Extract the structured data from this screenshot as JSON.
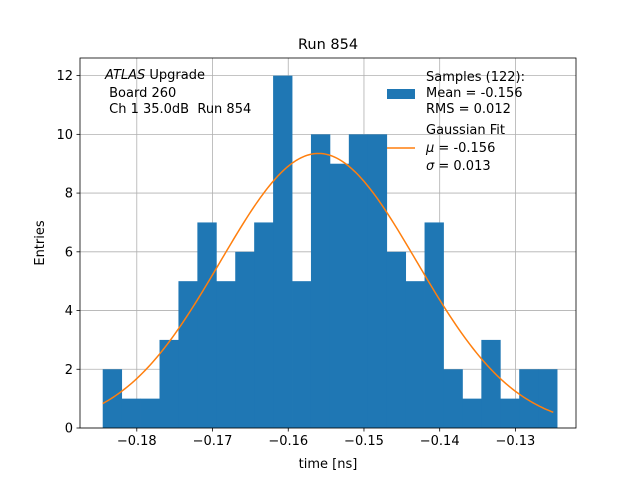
{
  "chart_data": {
    "type": "bar",
    "title": "Run 854",
    "xlabel": "time [ns]",
    "ylabel": "Entries",
    "xlim": [
      -0.1875,
      -0.122
    ],
    "ylim": [
      0,
      12.6
    ],
    "grid": true,
    "xticks": [
      -0.18,
      -0.17,
      -0.16,
      -0.15,
      -0.14,
      -0.13
    ],
    "xtick_labels": [
      "−0.18",
      "−0.17",
      "−0.16",
      "−0.15",
      "−0.14",
      "−0.13"
    ],
    "yticks": [
      0,
      2,
      4,
      6,
      8,
      10,
      12
    ],
    "ytick_labels": [
      "0",
      "2",
      "4",
      "6",
      "8",
      "10",
      "12"
    ],
    "histogram": {
      "name": "Samples (122):",
      "color": "#1f77b4",
      "bin_start": -0.1845,
      "bin_width": 0.0025,
      "counts": [
        2,
        1,
        1,
        3,
        5,
        7,
        5,
        6,
        7,
        12,
        5,
        10,
        9,
        10,
        10,
        6,
        5,
        7,
        2,
        1,
        3,
        1,
        2,
        2
      ]
    },
    "fit": {
      "name": "Gaussian Fit",
      "color": "#ff7f0e",
      "type": "gaussian",
      "mu": -0.156,
      "sigma": 0.01296,
      "amplitude": 9.35,
      "x_range": [
        -0.1845,
        -0.125
      ]
    },
    "annotation": {
      "italic": "ATLAS",
      "line1_rest": " Upgrade",
      "line2": " Board 260",
      "line3": " Ch 1 35.0dB  Run 854"
    },
    "legend": {
      "position": "upper right",
      "samples_title": "Samples (122):",
      "samples_mean": "Mean = -0.156",
      "samples_rms": "RMS = 0.012",
      "fit_title": "Gaussian Fit",
      "fit_mu_symbol": "μ",
      "fit_mu_value": " = -0.156",
      "fit_sigma_symbol": "σ",
      "fit_sigma_value": " = 0.013"
    }
  }
}
